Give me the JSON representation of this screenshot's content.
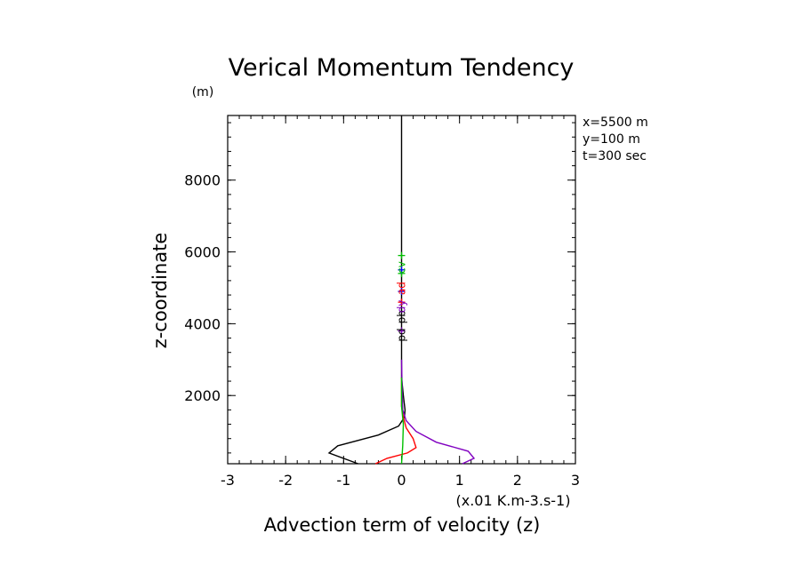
{
  "chart_data": {
    "type": "line",
    "title": "Verical Momentum Tendency",
    "xlabel": "Advection term of velocity (z)",
    "ylabel": "z-coordinate",
    "xunits": "(x.01 K.m-3.s-1)",
    "yunits": "(m)",
    "xlim": [
      -3,
      3
    ],
    "ylim": [
      100,
      9800
    ],
    "xticks": [
      -3,
      -2,
      -1,
      0,
      1,
      2,
      3
    ],
    "yticks": [
      2000,
      4000,
      6000,
      8000
    ],
    "info": [
      "x=5500 m",
      "y=100 m",
      "t=300 sec"
    ],
    "series": [
      {
        "color": "#000000",
        "points": [
          [
            -0.75,
            100
          ],
          [
            -1.25,
            400
          ],
          [
            -1.1,
            600
          ],
          [
            -0.4,
            900
          ],
          [
            -0.05,
            1150
          ],
          [
            0.05,
            1400
          ],
          [
            0.06,
            1600
          ],
          [
            0.03,
            2000
          ],
          [
            0.0,
            2500
          ],
          [
            0.0,
            3500
          ],
          [
            0.0,
            9800
          ]
        ]
      },
      {
        "color": "#ff0000",
        "points": [
          [
            -0.45,
            100
          ],
          [
            -0.25,
            250
          ],
          [
            0.1,
            400
          ],
          [
            0.25,
            550
          ],
          [
            0.2,
            800
          ],
          [
            0.08,
            1100
          ],
          [
            0.03,
            1400
          ],
          [
            0.0,
            1700
          ],
          [
            0.0,
            2500
          ]
        ]
      },
      {
        "color": "#8000c0",
        "points": [
          [
            1.05,
            100
          ],
          [
            1.25,
            250
          ],
          [
            1.15,
            450
          ],
          [
            0.6,
            700
          ],
          [
            0.25,
            1000
          ],
          [
            0.08,
            1300
          ],
          [
            0.02,
            1600
          ],
          [
            0.01,
            2100
          ],
          [
            0.0,
            3000
          ]
        ]
      },
      {
        "color": "#00c000",
        "points": [
          [
            0.0,
            100
          ],
          [
            0.02,
            600
          ],
          [
            0.03,
            1200
          ],
          [
            0.0,
            1700
          ],
          [
            0.0,
            2500
          ]
        ]
      }
    ],
    "annotations": {
      "labels": [
        {
          "text": "pd",
          "color": "#000000",
          "x": 0.0,
          "y": 3500
        },
        {
          "text": "pb",
          "color": "#000000",
          "x": 0.0,
          "y": 4000
        },
        {
          "text": "dy",
          "color": "#8000c0",
          "x": 0.0,
          "y": 4300
        },
        {
          "text": "ad",
          "color": "#ff0000",
          "x": 0.0,
          "y": 4800
        },
        {
          "text": "cv",
          "color": "#00c000",
          "x": 0.0,
          "y": 5400
        }
      ],
      "markers": [
        {
          "color": "#8000c0",
          "x": 0.0,
          "y": 3800
        },
        {
          "color": "#ff0000",
          "x": 0.0,
          "y": 4600
        },
        {
          "color": "#0000ff",
          "x": 0.0,
          "y": 4900
        },
        {
          "color": "#00c000",
          "x": 0.0,
          "y": 5400
        },
        {
          "color": "#0000ff",
          "x": 0.0,
          "y": 5500
        },
        {
          "color": "#00c000",
          "x": 0.0,
          "y": 5900
        }
      ]
    }
  }
}
